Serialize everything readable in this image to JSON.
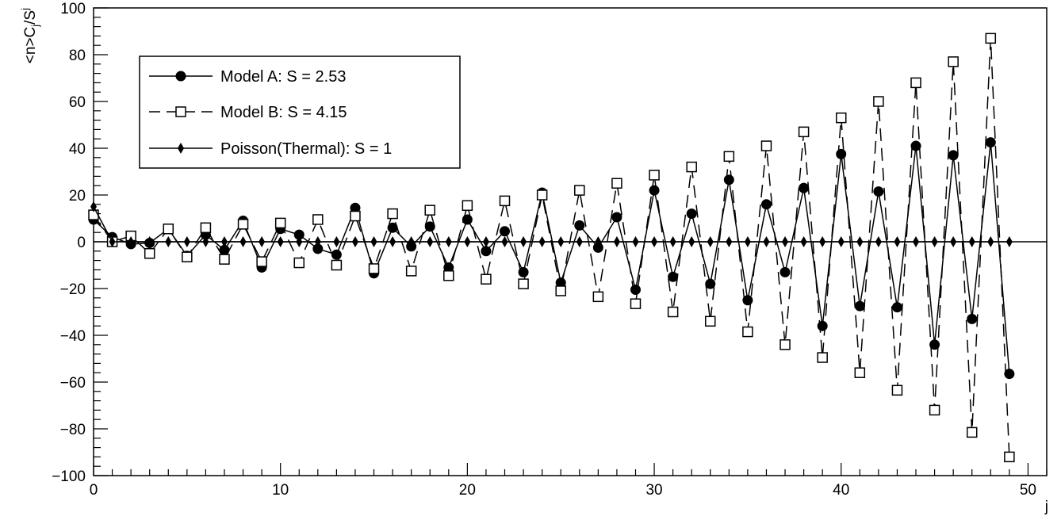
{
  "chart_data": {
    "type": "line",
    "xlabel": "j",
    "ylabel_main": "<n>C",
    "ylabel_sub": "j",
    "ylabel_slash": "/S",
    "ylabel_sup": "j",
    "xlim": [
      0,
      51
    ],
    "ylim": [
      -100,
      100
    ],
    "x_ticks": [
      0,
      10,
      20,
      30,
      40,
      50
    ],
    "x_tick_labels": [
      "0",
      "10",
      "20",
      "30",
      "40",
      "50"
    ],
    "y_ticks": [
      -100,
      -80,
      -60,
      -40,
      -20,
      0,
      20,
      40,
      60,
      80,
      100
    ],
    "y_tick_labels": [
      "−100",
      "−80",
      "−60",
      "−40",
      "−20",
      "0",
      "20",
      "40",
      "60",
      "80",
      "100"
    ],
    "legend_position": "upper-left",
    "series": [
      {
        "name": "Model A: S = 2.53",
        "marker": "filled-circle",
        "line": "solid",
        "x": [
          0,
          1,
          2,
          3,
          4,
          5,
          6,
          7,
          8,
          9,
          10,
          11,
          12,
          13,
          14,
          15,
          16,
          17,
          18,
          19,
          20,
          21,
          22,
          23,
          24,
          25,
          26,
          27,
          28,
          29,
          30,
          31,
          32,
          33,
          34,
          35,
          36,
          37,
          38,
          39,
          40,
          41,
          42,
          43,
          44,
          45,
          46,
          47,
          48,
          49
        ],
        "values": [
          9.5,
          2,
          -1,
          -0.5,
          5.5,
          -6,
          3,
          -3.5,
          9,
          -11,
          5.5,
          3,
          -3,
          -5.5,
          14.5,
          -13.5,
          6,
          -2,
          6.5,
          -11,
          9.5,
          -4,
          4.5,
          -13,
          21,
          -17.5,
          7,
          -2.5,
          10.5,
          -20.5,
          22,
          -15,
          12,
          -18,
          26.5,
          -25,
          16,
          -13,
          23,
          -36,
          37.5,
          -27.5,
          21.5,
          -28,
          41,
          -44,
          37,
          -33,
          42.5,
          -56.5
        ]
      },
      {
        "name": "Model B: S = 4.15",
        "marker": "open-square",
        "line": "dashed",
        "x": [
          0,
          1,
          2,
          3,
          4,
          5,
          6,
          7,
          8,
          9,
          10,
          11,
          12,
          13,
          14,
          15,
          16,
          17,
          18,
          19,
          20,
          21,
          22,
          23,
          24,
          25,
          26,
          27,
          28,
          29,
          30,
          31,
          32,
          33,
          34,
          35,
          36,
          37,
          38,
          39,
          40,
          41,
          42,
          43,
          44,
          45,
          46,
          47,
          48,
          49
        ],
        "values": [
          11.5,
          0,
          2.5,
          -5,
          5.5,
          -6.5,
          6,
          -7.5,
          7.5,
          -8.5,
          8,
          -9,
          9.5,
          -10,
          11,
          -11.5,
          12,
          -12.5,
          13.5,
          -14.5,
          15.5,
          -16,
          17.5,
          -18,
          20,
          -21,
          22,
          -23.5,
          25,
          -26.5,
          28.5,
          -30,
          32,
          -34,
          36.5,
          -38.5,
          41,
          -44,
          47,
          -49.5,
          53,
          -56,
          60,
          -63.5,
          68,
          -72,
          77,
          -81.5,
          87,
          -92
        ]
      },
      {
        "name": "Poisson(Thermal): S = 1",
        "marker": "diamond",
        "line": "solid",
        "x": [
          0,
          1,
          2,
          3,
          4,
          5,
          6,
          7,
          8,
          9,
          10,
          11,
          12,
          13,
          14,
          15,
          16,
          17,
          18,
          19,
          20,
          21,
          22,
          23,
          24,
          25,
          26,
          27,
          28,
          29,
          30,
          31,
          32,
          33,
          34,
          35,
          36,
          37,
          38,
          39,
          40,
          41,
          42,
          43,
          44,
          45,
          46,
          47,
          48,
          49
        ],
        "values": [
          15,
          0,
          0,
          0,
          0,
          0,
          0,
          0,
          0,
          0,
          0,
          0,
          0,
          0,
          0,
          0,
          0,
          0,
          0,
          0,
          0,
          0,
          0,
          0,
          0,
          0,
          0,
          0,
          0,
          0,
          0,
          0,
          0,
          0,
          0,
          0,
          0,
          0,
          0,
          0,
          0,
          0,
          0,
          0,
          0,
          0,
          0,
          0,
          0,
          0
        ]
      }
    ]
  }
}
